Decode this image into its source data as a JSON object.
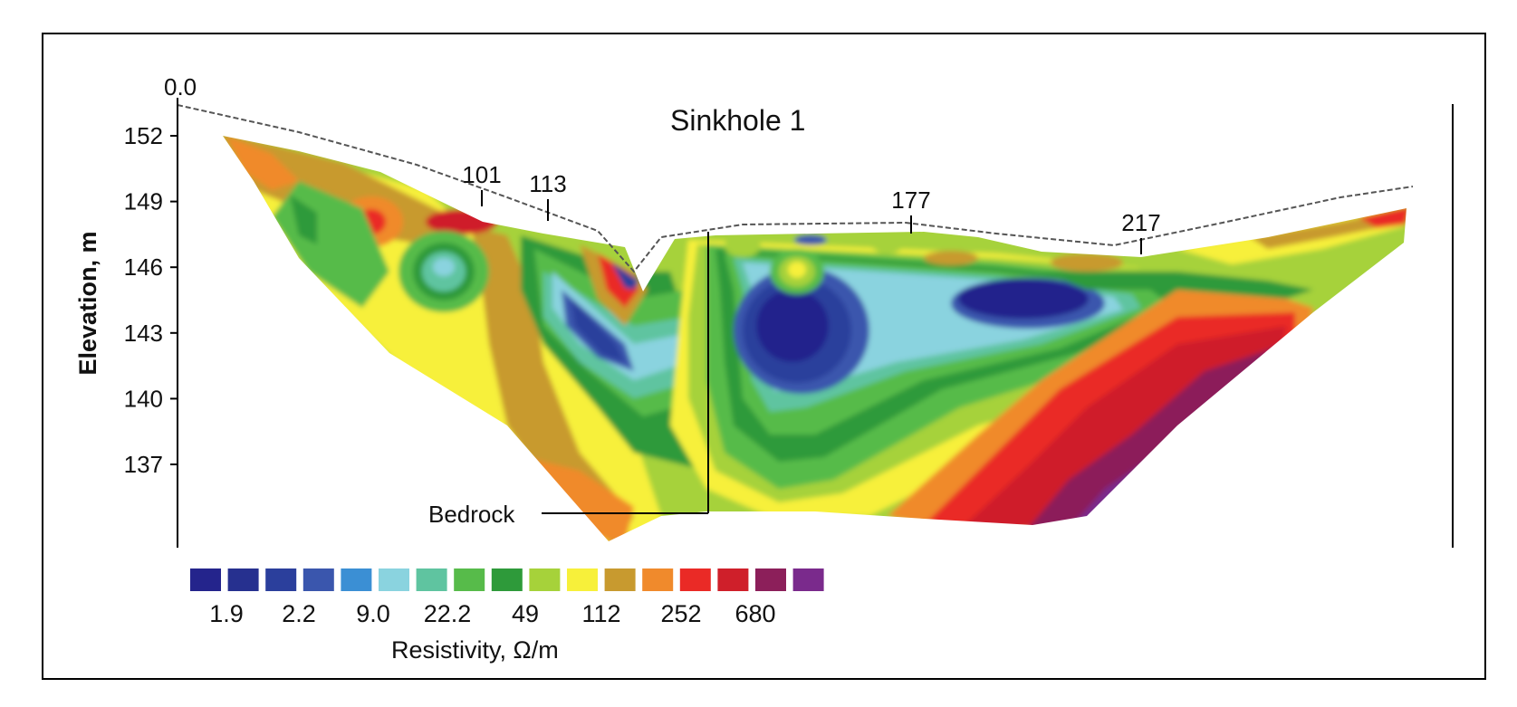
{
  "chart_data": {
    "type": "heatmap",
    "title": "Sinkhole 1",
    "ylabel": "Elevation, m",
    "y_ticks": [
      "152",
      "149",
      "146",
      "143",
      "140",
      "137"
    ],
    "y_tick_values": [
      152,
      149,
      146,
      143,
      140,
      137
    ],
    "ylim": [
      133.4,
      153.6
    ],
    "origin_label": "0.0",
    "distance_markers": [
      "101",
      "113",
      "177",
      "217"
    ],
    "annotation": "Bedrock",
    "colorbar": {
      "label": "Resistivity, Ω/m",
      "tick_labels": [
        "1.9",
        "2.2",
        "9.0",
        "22.2",
        "49",
        "112",
        "252",
        "680"
      ],
      "colors": [
        "#24248c",
        "#26308f",
        "#2b3f9c",
        "#3a56ad",
        "#3b8fd4",
        "#8ad3df",
        "#5fc4a0",
        "#57bb4a",
        "#2e9a3a",
        "#a6d23a",
        "#f7f03a",
        "#c89a2f",
        "#f08a2c",
        "#ea2a26",
        "#cf1f2a",
        "#8c1f5a",
        "#7a2a8c"
      ]
    }
  }
}
